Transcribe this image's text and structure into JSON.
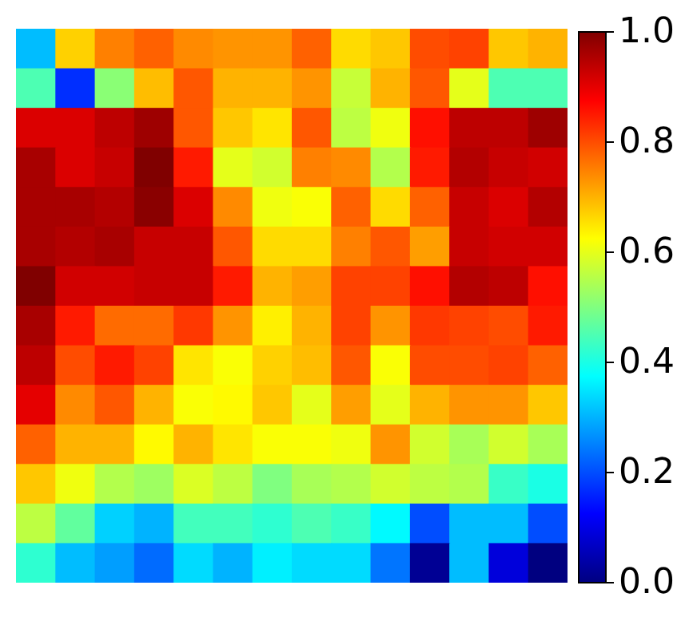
{
  "chart_data": {
    "type": "heatmap",
    "categories": [
      null,
      null,
      null,
      null,
      null,
      null,
      null,
      null,
      null,
      null,
      null,
      null,
      null,
      null
    ],
    "y_categories": [
      null,
      null,
      null,
      null,
      null,
      null,
      null,
      null,
      null,
      null,
      null,
      null,
      null,
      null
    ],
    "cells": [
      [
        0.31,
        0.67,
        0.75,
        0.78,
        0.74,
        0.73,
        0.73,
        0.78,
        0.66,
        0.68,
        0.8,
        0.81,
        0.68,
        0.7
      ],
      [
        0.45,
        0.17,
        0.51,
        0.69,
        0.79,
        0.7,
        0.7,
        0.73,
        0.57,
        0.7,
        0.79,
        0.6,
        0.45,
        0.45
      ],
      [
        0.91,
        0.91,
        0.94,
        0.97,
        0.79,
        0.68,
        0.65,
        0.79,
        0.56,
        0.61,
        0.86,
        0.94,
        0.94,
        0.97
      ],
      [
        0.96,
        0.91,
        0.93,
        1.0,
        0.85,
        0.6,
        0.58,
        0.75,
        0.74,
        0.55,
        0.85,
        0.95,
        0.93,
        0.92
      ],
      [
        0.96,
        0.96,
        0.95,
        0.99,
        0.91,
        0.74,
        0.61,
        0.62,
        0.78,
        0.66,
        0.78,
        0.93,
        0.91,
        0.95
      ],
      [
        0.96,
        0.95,
        0.96,
        0.93,
        0.93,
        0.79,
        0.66,
        0.66,
        0.75,
        0.79,
        0.72,
        0.93,
        0.92,
        0.92
      ],
      [
        1.0,
        0.92,
        0.92,
        0.93,
        0.93,
        0.85,
        0.7,
        0.72,
        0.81,
        0.81,
        0.86,
        0.95,
        0.94,
        0.86
      ],
      [
        0.96,
        0.85,
        0.77,
        0.77,
        0.82,
        0.73,
        0.64,
        0.7,
        0.81,
        0.73,
        0.82,
        0.81,
        0.8,
        0.85
      ],
      [
        0.94,
        0.8,
        0.85,
        0.81,
        0.65,
        0.62,
        0.67,
        0.69,
        0.79,
        0.62,
        0.8,
        0.8,
        0.81,
        0.78
      ],
      [
        0.9,
        0.74,
        0.79,
        0.7,
        0.62,
        0.63,
        0.68,
        0.6,
        0.72,
        0.6,
        0.7,
        0.73,
        0.73,
        0.68
      ],
      [
        0.78,
        0.7,
        0.7,
        0.63,
        0.7,
        0.65,
        0.62,
        0.62,
        0.61,
        0.73,
        0.58,
        0.54,
        0.58,
        0.54
      ],
      [
        0.68,
        0.61,
        0.55,
        0.53,
        0.59,
        0.56,
        0.5,
        0.54,
        0.55,
        0.58,
        0.56,
        0.55,
        0.43,
        0.4
      ],
      [
        0.56,
        0.47,
        0.33,
        0.3,
        0.44,
        0.44,
        0.42,
        0.45,
        0.43,
        0.37,
        0.2,
        0.31,
        0.31,
        0.2
      ],
      [
        0.42,
        0.31,
        0.28,
        0.23,
        0.34,
        0.3,
        0.36,
        0.34,
        0.34,
        0.24,
        0.02,
        0.31,
        0.09,
        0.0
      ]
    ],
    "clim": [
      0.0,
      1.0
    ],
    "cticks": [
      {
        "value": 0.0,
        "label": "0.0"
      },
      {
        "value": 0.2,
        "label": "0.2"
      },
      {
        "value": 0.4,
        "label": "0.4"
      },
      {
        "value": 0.6,
        "label": "0.6"
      },
      {
        "value": 0.8,
        "label": "0.8"
      },
      {
        "value": 1.0,
        "label": "1.0"
      }
    ]
  }
}
